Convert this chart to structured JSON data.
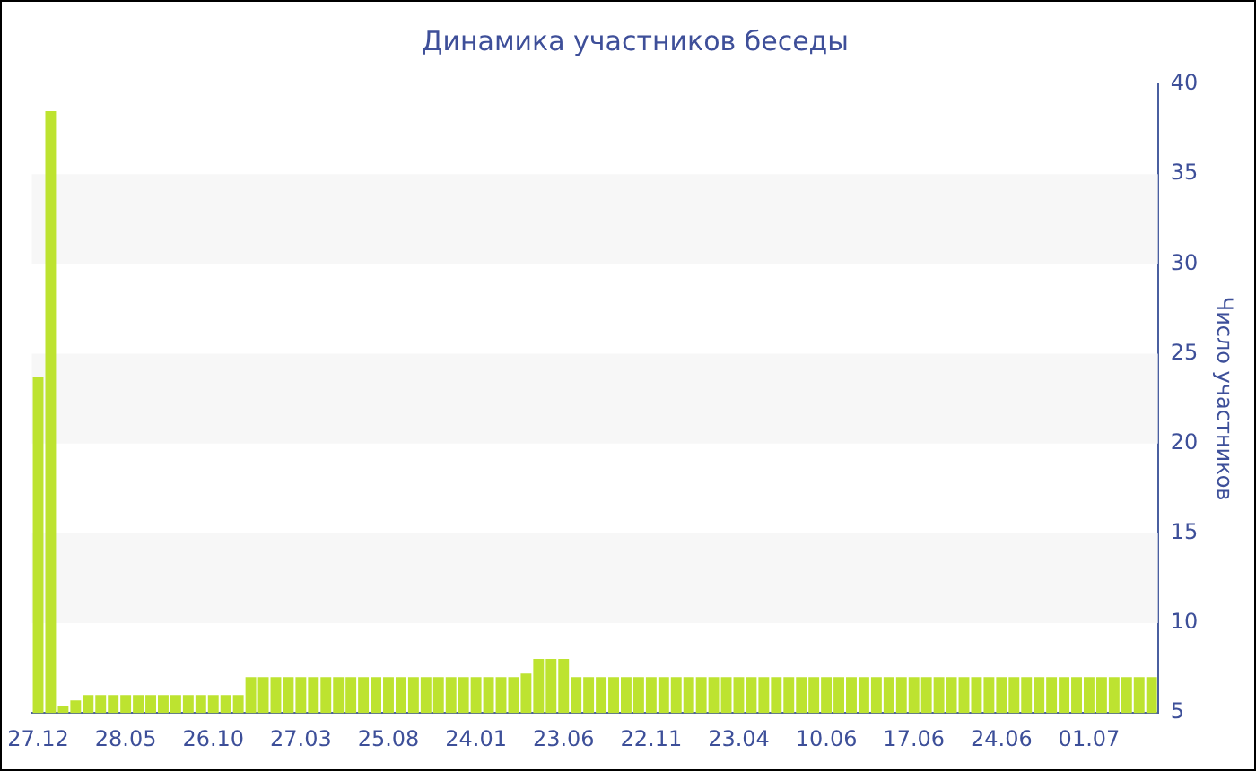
{
  "chart_data": {
    "type": "bar",
    "title": "Динамика участников беседы",
    "ylabel": "Число участников",
    "categories": [
      "27.12",
      null,
      null,
      null,
      null,
      null,
      null,
      "28.05",
      null,
      null,
      null,
      null,
      null,
      null,
      "26.10",
      null,
      null,
      null,
      null,
      null,
      null,
      "27.03",
      null,
      null,
      null,
      null,
      null,
      null,
      "25.08",
      null,
      null,
      null,
      null,
      null,
      null,
      "24.01",
      null,
      null,
      null,
      null,
      null,
      null,
      "23.06",
      null,
      null,
      null,
      null,
      null,
      null,
      "22.11",
      null,
      null,
      null,
      null,
      null,
      null,
      "23.04",
      null,
      null,
      null,
      null,
      null,
      null,
      "10.06",
      null,
      null,
      null,
      null,
      null,
      null,
      "17.06",
      null,
      null,
      null,
      null,
      null,
      null,
      "24.06",
      null,
      null,
      null,
      null,
      null,
      null,
      "01.07",
      null,
      null,
      null,
      null,
      null
    ],
    "values": [
      23.7,
      38.5,
      5.4,
      5.7,
      6,
      6,
      6,
      6,
      6,
      6,
      6,
      6,
      6,
      6,
      6,
      6,
      6,
      7,
      7,
      7,
      7,
      7,
      7,
      7,
      7,
      7,
      7,
      7,
      7,
      7,
      7,
      7,
      7,
      7,
      7,
      7,
      7,
      7,
      7,
      7.2,
      8,
      8,
      8,
      7,
      7,
      7,
      7,
      7,
      7,
      7,
      7,
      7,
      7,
      7,
      7,
      7,
      7,
      7,
      7,
      7,
      7,
      7,
      7,
      7,
      7,
      7,
      7,
      7,
      7,
      7,
      7,
      7,
      7,
      7,
      7,
      7,
      7,
      7,
      7,
      7,
      7,
      7,
      7,
      7,
      7,
      7,
      7,
      7,
      7,
      7
    ],
    "color": "#bde330",
    "ylim": [
      5,
      40
    ],
    "yticks": [
      5,
      10,
      15,
      20,
      25,
      30,
      35,
      40
    ],
    "grid": false,
    "bands": [
      {
        "axis": "y",
        "from": 10,
        "to": 15,
        "color": "#f7f7f7"
      },
      {
        "axis": "y",
        "from": 20,
        "to": 25,
        "color": "#f7f7f7"
      },
      {
        "axis": "y",
        "from": 30,
        "to": 35,
        "color": "#f7f7f7"
      }
    ]
  }
}
